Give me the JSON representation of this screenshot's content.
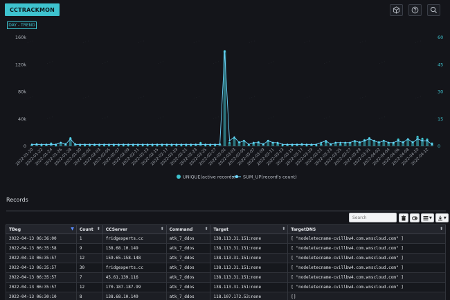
{
  "header": {
    "app_button": "CCTRACKMON",
    "icons": [
      "cube-icon",
      "help-icon",
      "search-icon"
    ]
  },
  "trend_tag": "DAY - TREND",
  "chart_data": {
    "type": "bar",
    "ylabel_left": "",
    "ylabel_right": "",
    "ylim_left": [
      0,
      160000
    ],
    "ylim_right": [
      0,
      60
    ],
    "yticks_left": [
      "0",
      "40k",
      "80k",
      "120k",
      "160k"
    ],
    "yticks_right": [
      "0",
      "15",
      "30",
      "45",
      "60"
    ],
    "x": [
      "2022-01-20",
      "2022-01-21",
      "2022-01-22",
      "2022-01-23",
      "2022-01-24",
      "2022-01-25",
      "2022-01-26",
      "2022-01-27",
      "2022-01-28",
      "2022-01-29",
      "2022-01-30",
      "2022-01-31",
      "2022-02-01",
      "2022-02-02",
      "2022-02-03",
      "2022-02-04",
      "2022-02-05",
      "2022-02-06",
      "2022-02-07",
      "2022-02-08",
      "2022-02-09",
      "2022-02-10",
      "2022-02-11",
      "2022-02-12",
      "2022-02-13",
      "2022-02-14",
      "2022-02-15",
      "2022-02-16",
      "2022-02-17",
      "2022-02-18",
      "2022-02-19",
      "2022-02-20",
      "2022-02-21",
      "2022-02-22",
      "2022-02-23",
      "2022-02-24",
      "2022-02-25",
      "2022-02-26",
      "2022-02-27",
      "2022-02-28",
      "2022-03-01",
      "2022-03-02",
      "2022-03-03",
      "2022-03-04",
      "2022-03-05",
      "2022-03-06",
      "2022-03-07",
      "2022-03-08",
      "2022-03-09",
      "2022-03-10",
      "2022-03-11",
      "2022-03-12",
      "2022-03-13",
      "2022-03-14",
      "2022-03-15",
      "2022-03-16",
      "2022-03-17",
      "2022-03-18",
      "2022-03-19",
      "2022-03-20",
      "2022-03-21",
      "2022-03-22",
      "2022-03-23",
      "2022-03-24",
      "2022-03-25",
      "2022-03-26",
      "2022-03-27",
      "2022-03-28",
      "2022-03-29",
      "2022-03-30",
      "2022-03-31",
      "2022-04-01",
      "2022-04-02",
      "2022-04-03",
      "2022-04-04",
      "2022-04-05",
      "2022-04-06",
      "2022-04-07",
      "2022-04-08",
      "2022-04-09",
      "2022-04-10",
      "2022-04-11",
      "2022-04-12",
      "2022-04-13"
    ],
    "xtick_labels": [
      "2022-01-20",
      "2022-01-22",
      "2022-01-24",
      "2022-01-26",
      "2022-01-28",
      "2022-01-30",
      "2022-02-01",
      "2022-02-03",
      "2022-02-05",
      "2022-02-07",
      "2022-02-09",
      "2022-02-11",
      "2022-02-13",
      "2022-02-15",
      "2022-02-17",
      "2022-02-19",
      "2022-02-21",
      "2022-02-23",
      "2022-02-25",
      "2022-02-27",
      "2022-03-01",
      "2022-03-03",
      "2022-03-05",
      "2022-03-07",
      "2022-03-09",
      "2022-03-11",
      "2022-03-13",
      "2022-03-15",
      "2022-03-17",
      "2022-03-19",
      "2022-03-21",
      "2022-03-23",
      "2022-03-25",
      "2022-03-27",
      "2022-03-29",
      "2022-03-31",
      "2022-04-02",
      "2022-04-04",
      "2022-04-06",
      "2022-04-08",
      "2022-04-10",
      "2022-04-12"
    ],
    "series": [
      {
        "name": "UNIQUE(active records)",
        "axis": "left",
        "color": "#3ec3cf",
        "values": [
          2000,
          3000,
          1000,
          2000,
          4000,
          1000,
          5000,
          3000,
          12000,
          3000,
          1000,
          1000,
          1000,
          1500,
          1000,
          1000,
          1000,
          1000,
          1000,
          1000,
          1000,
          1000,
          1000,
          1000,
          1000,
          1000,
          1000,
          1000,
          1000,
          1000,
          1000,
          1000,
          1000,
          1000,
          2000,
          5000,
          1000,
          1000,
          1000,
          3000,
          140000,
          5000,
          12000,
          6000,
          8000,
          2000,
          4000,
          6000,
          3000,
          8000,
          5000,
          4000,
          1000,
          2000,
          1000,
          2000,
          3000,
          1000,
          2000,
          1000,
          3000,
          6000,
          3000,
          5000,
          3000,
          5000,
          5000,
          7000,
          6000,
          9000,
          12000,
          8000,
          6000,
          8000,
          5000,
          4000,
          10000,
          6000,
          10000,
          6000,
          14000,
          11000,
          10000,
          4000
        ]
      },
      {
        "name": "SUM_UP(record's count)",
        "axis": "right",
        "color": "#6fd6ff",
        "values": [
          1,
          1,
          1,
          1,
          1,
          1,
          2,
          1,
          4,
          1,
          1,
          1,
          1,
          1,
          1,
          1,
          1,
          1,
          1,
          1,
          1,
          1,
          1,
          1,
          1,
          1,
          1,
          1,
          1,
          1,
          1,
          1,
          1,
          1,
          1,
          1,
          1,
          1,
          1,
          1,
          52,
          3,
          5,
          2,
          3,
          1,
          2,
          2,
          1,
          3,
          2,
          2,
          1,
          1,
          1,
          1,
          1,
          1,
          1,
          1,
          2,
          3,
          1,
          2,
          2,
          2,
          2,
          3,
          2,
          3,
          4,
          3,
          2,
          3,
          2,
          2,
          3,
          2,
          4,
          2,
          4,
          3,
          3,
          1
        ]
      }
    ],
    "legend_position": "bottom-center",
    "grid": false
  },
  "records": {
    "title": "Records",
    "search_placeholder": "Search",
    "toolbar_icons": [
      "trash-icon",
      "toggle-icon",
      "columns-icon",
      "download-icon"
    ],
    "columns": [
      "TBeg",
      "Count",
      "CCServer",
      "Command",
      "Target",
      "TargetDNS"
    ],
    "rows": [
      [
        "2022-04-13 06:36:00",
        "1",
        "fridgexperts.cc",
        "atk_7_ddos",
        "138.113.31.151:none",
        "[ \"nodeletecname-cvillbw4.com.wnscloud.com\" ]"
      ],
      [
        "2022-04-13 06:35:58",
        "9",
        "138.68.10.149",
        "atk_7_ddos",
        "138.113.31.151:none",
        "[ \"nodeletecname-cvillbw4.com.wnscloud.com\" ]"
      ],
      [
        "2022-04-13 06:35:57",
        "12",
        "159.65.158.148",
        "atk_7_ddos",
        "138.113.31.151:none",
        "[ \"nodeletecname-cvillbw4.com.wnscloud.com\" ]"
      ],
      [
        "2022-04-13 06:35:57",
        "30",
        "fridgexperts.cc",
        "atk_7_ddos",
        "138.113.31.151:none",
        "[ \"nodeletecname-cvillbw4.com.wnscloud.com\" ]"
      ],
      [
        "2022-04-13 06:35:57",
        "7",
        "45.61.139.116",
        "atk_7_ddos",
        "138.113.31.151:none",
        "[ \"nodeletecname-cvillbw4.com.wnscloud.com\" ]"
      ],
      [
        "2022-04-13 06:35:57",
        "12",
        "170.187.187.99",
        "atk_7_ddos",
        "138.113.31.151:none",
        "[ \"nodeletecname-cvillbw4.com.wnscloud.com\" ]"
      ],
      [
        "2022-04-13 06:30:10",
        "8",
        "138.68.10.149",
        "atk_7_ddos",
        "118.107.172.53:none",
        "[]"
      ]
    ]
  }
}
